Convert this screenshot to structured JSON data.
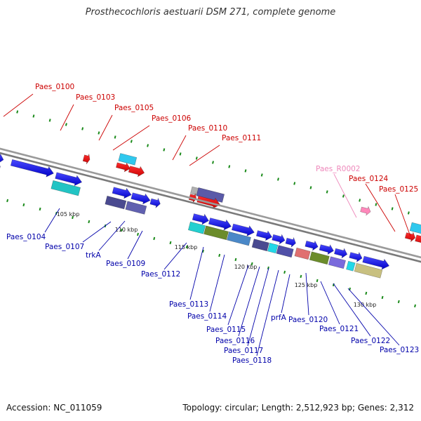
{
  "title": "Prosthecochloris aestuarii DSM 271, complete genome",
  "footer": {
    "accession": "Accession: NC_011059",
    "summary": "Topology: circular; Length: 2,512,923 bp; Genes: 2,312"
  },
  "colors": {
    "forward_label": "#cc0000",
    "reverse_label": "#0000aa",
    "rna_label": "#ee88bb",
    "tick": "#1a8a1a",
    "axis": "#8a8a8a",
    "ruler_text": "#222222"
  },
  "ruler_ticks": [
    {
      "label": "105 kbp"
    },
    {
      "label": "110 kbp"
    },
    {
      "label": "115 kbp"
    },
    {
      "label": "120 kbp"
    },
    {
      "label": "125 kbp"
    },
    {
      "label": "130 kbp"
    }
  ],
  "top_labels": [
    {
      "text": "Paes_0100",
      "kind": "forward"
    },
    {
      "text": "Paes_0103",
      "kind": "forward"
    },
    {
      "text": "Paes_0105",
      "kind": "forward"
    },
    {
      "text": "Paes_0106",
      "kind": "forward"
    },
    {
      "text": "Paes_0110",
      "kind": "forward"
    },
    {
      "text": "Paes_0111",
      "kind": "forward"
    },
    {
      "text": "Paes_R0002",
      "kind": "rna"
    },
    {
      "text": "Paes_0124",
      "kind": "forward"
    },
    {
      "text": "Paes_0125",
      "kind": "forward"
    }
  ],
  "bottom_labels": [
    {
      "text": "Paes_0104"
    },
    {
      "text": "Paes_0107"
    },
    {
      "text": "trkA"
    },
    {
      "text": "Paes_0109"
    },
    {
      "text": "Paes_0112"
    },
    {
      "text": "Paes_0113"
    },
    {
      "text": "Paes_0114"
    },
    {
      "text": "Paes_0115"
    },
    {
      "text": "Paes_0116"
    },
    {
      "text": "Paes_0117"
    },
    {
      "text": "Paes_0118"
    },
    {
      "text": "prfA"
    },
    {
      "text": "Paes_0120"
    },
    {
      "text": "Paes_0121"
    },
    {
      "text": "Paes_0122"
    },
    {
      "text": "Paes_0123"
    }
  ]
}
